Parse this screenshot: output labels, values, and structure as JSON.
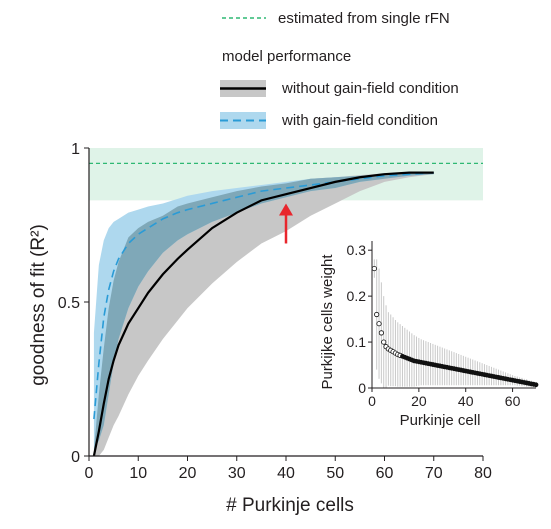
{
  "legend": {
    "estimate_label": "estimated from single rFN",
    "group_title": "model performance",
    "without_label": "without gain-field condition",
    "with_label": "with gain-field condition"
  },
  "colors": {
    "estimate_line": "#2eb873",
    "estimate_band": "#dff3e8",
    "without_band": "#c7c7c7",
    "without_line": "#000000",
    "with_band": "#aed8ee",
    "with_line": "#2a9bd6",
    "overlap_band": "#7fa8b8",
    "arrow": "#e8262d"
  },
  "chart_data": [
    {
      "type": "line",
      "xlabel": "# Purkinje cells",
      "ylabel": "goodness of fit (R²)",
      "xlim": [
        0,
        80
      ],
      "ylim": [
        0,
        1
      ],
      "xticks": [
        0,
        10,
        20,
        30,
        40,
        50,
        60,
        70,
        80
      ],
      "yticks": [
        0,
        0.5,
        1
      ],
      "ytick_labels": [
        "0",
        "0.5",
        "1"
      ],
      "estimated_from_single_rFN": {
        "value": 0.95,
        "band": [
          0.83,
          1.0
        ]
      },
      "annotation_arrow": {
        "x": 40,
        "y_from": 0.69,
        "y_to": 0.82
      },
      "x": [
        1,
        2,
        3,
        4,
        5,
        6,
        8,
        10,
        12,
        15,
        18,
        20,
        25,
        30,
        35,
        40,
        45,
        50,
        55,
        60,
        65,
        70
      ],
      "series": [
        {
          "name": "without gain-field condition",
          "mean": [
            0.0,
            0.08,
            0.17,
            0.25,
            0.31,
            0.36,
            0.43,
            0.48,
            0.53,
            0.59,
            0.64,
            0.67,
            0.74,
            0.79,
            0.83,
            0.85,
            0.87,
            0.89,
            0.905,
            0.915,
            0.92,
            0.92
          ],
          "upper": [
            0.02,
            0.2,
            0.35,
            0.48,
            0.57,
            0.63,
            0.71,
            0.74,
            0.76,
            0.78,
            0.81,
            0.82,
            0.84,
            0.86,
            0.875,
            0.885,
            0.9,
            0.905,
            0.912,
            0.918,
            0.92,
            0.92
          ],
          "lower": [
            0.0,
            0.0,
            0.02,
            0.06,
            0.1,
            0.13,
            0.2,
            0.26,
            0.31,
            0.38,
            0.44,
            0.48,
            0.56,
            0.63,
            0.69,
            0.73,
            0.78,
            0.82,
            0.86,
            0.89,
            0.905,
            0.915
          ]
        },
        {
          "name": "with gain-field condition",
          "mean": [
            0.12,
            0.3,
            0.45,
            0.54,
            0.6,
            0.64,
            0.69,
            0.72,
            0.74,
            0.77,
            0.79,
            0.8,
            0.82,
            0.84,
            0.86,
            0.87,
            0.88,
            0.89,
            0.9,
            0.91,
            0.915,
            0.92
          ],
          "upper": [
            0.4,
            0.62,
            0.7,
            0.74,
            0.76,
            0.77,
            0.79,
            0.8,
            0.81,
            0.82,
            0.835,
            0.845,
            0.86,
            0.87,
            0.88,
            0.89,
            0.9,
            0.905,
            0.91,
            0.915,
            0.92,
            0.92
          ],
          "lower": [
            0.02,
            0.05,
            0.1,
            0.2,
            0.3,
            0.38,
            0.48,
            0.55,
            0.6,
            0.66,
            0.7,
            0.72,
            0.76,
            0.79,
            0.82,
            0.84,
            0.86,
            0.87,
            0.89,
            0.9,
            0.91,
            0.915
          ]
        }
      ]
    },
    {
      "type": "scatter",
      "xlabel": "Purkinje cell",
      "ylabel": "Purkijke cells weight",
      "xlim": [
        0,
        70
      ],
      "ylim": [
        0,
        0.32
      ],
      "xticks": [
        0,
        20,
        40,
        60
      ],
      "yticks": [
        0,
        0.1,
        0.2,
        0.3
      ],
      "ytick_labels": [
        "0",
        "0.1",
        "0.2",
        "0.3"
      ],
      "x": [
        1,
        2,
        3,
        4,
        5,
        6,
        7,
        8,
        9,
        10,
        11,
        12,
        13,
        14,
        15,
        16,
        17,
        18,
        19,
        20,
        21,
        22,
        23,
        24,
        25,
        26,
        27,
        28,
        29,
        30,
        31,
        32,
        33,
        34,
        35,
        36,
        37,
        38,
        39,
        40,
        41,
        42,
        43,
        44,
        45,
        46,
        47,
        48,
        49,
        50,
        51,
        52,
        53,
        54,
        55,
        56,
        57,
        58,
        59,
        60,
        61,
        62,
        63,
        64,
        65,
        66,
        67,
        68,
        69,
        70
      ],
      "y": [
        0.26,
        0.16,
        0.14,
        0.12,
        0.1,
        0.09,
        0.085,
        0.082,
        0.079,
        0.076,
        0.073,
        0.071,
        0.069,
        0.067,
        0.065,
        0.063,
        0.061,
        0.059,
        0.058,
        0.057,
        0.056,
        0.055,
        0.054,
        0.053,
        0.052,
        0.051,
        0.05,
        0.049,
        0.048,
        0.047,
        0.046,
        0.045,
        0.044,
        0.043,
        0.042,
        0.041,
        0.04,
        0.039,
        0.038,
        0.037,
        0.036,
        0.035,
        0.034,
        0.033,
        0.032,
        0.031,
        0.03,
        0.029,
        0.028,
        0.027,
        0.026,
        0.025,
        0.024,
        0.023,
        0.022,
        0.021,
        0.02,
        0.019,
        0.018,
        0.017,
        0.016,
        0.015,
        0.014,
        0.013,
        0.012,
        0.011,
        0.01,
        0.009,
        0.008,
        0.007
      ],
      "error": [
        0.02,
        0.12,
        0.12,
        0.11,
        0.1,
        0.09,
        0.08,
        0.078,
        0.075,
        0.072,
        0.07,
        0.068,
        0.066,
        0.064,
        0.062,
        0.06,
        0.058,
        0.056,
        0.054,
        0.052,
        0.05,
        0.049,
        0.048,
        0.047,
        0.046,
        0.045,
        0.044,
        0.043,
        0.042,
        0.041,
        0.04,
        0.039,
        0.038,
        0.037,
        0.036,
        0.035,
        0.034,
        0.033,
        0.032,
        0.031,
        0.03,
        0.029,
        0.028,
        0.027,
        0.026,
        0.025,
        0.024,
        0.023,
        0.022,
        0.021,
        0.02,
        0.019,
        0.018,
        0.017,
        0.016,
        0.015,
        0.014,
        0.013,
        0.012,
        0.011,
        0.01,
        0.01,
        0.009,
        0.009,
        0.008,
        0.008,
        0.007,
        0.007,
        0.006,
        0.006
      ]
    }
  ]
}
